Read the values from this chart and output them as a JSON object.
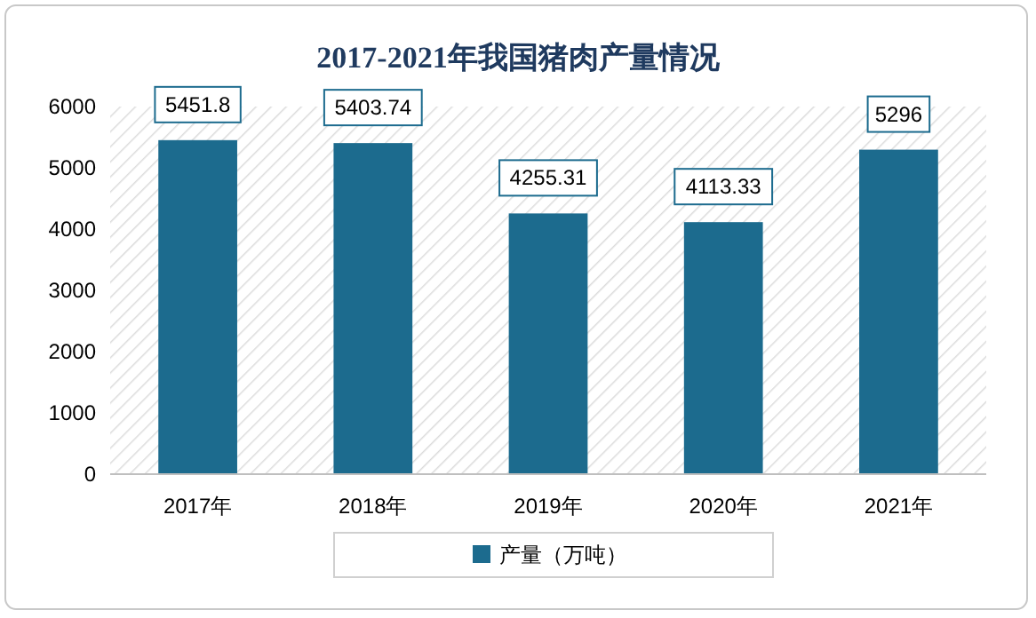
{
  "chart_data": {
    "type": "bar",
    "title": "2017-2021年我国猪肉产量情况",
    "categories": [
      "2017年",
      "2018年",
      "2019年",
      "2020年",
      "2021年"
    ],
    "series": [
      {
        "name": "产量（万吨）",
        "color": "#1c6b8e",
        "values": [
          5451.8,
          5403.74,
          4255.31,
          4113.33,
          5296
        ]
      }
    ],
    "ylim": [
      0,
      6000
    ],
    "yticks": [
      0,
      1000,
      2000,
      3000,
      4000,
      5000,
      6000
    ],
    "grid": false,
    "legend": "bottom",
    "data_labels": true
  }
}
